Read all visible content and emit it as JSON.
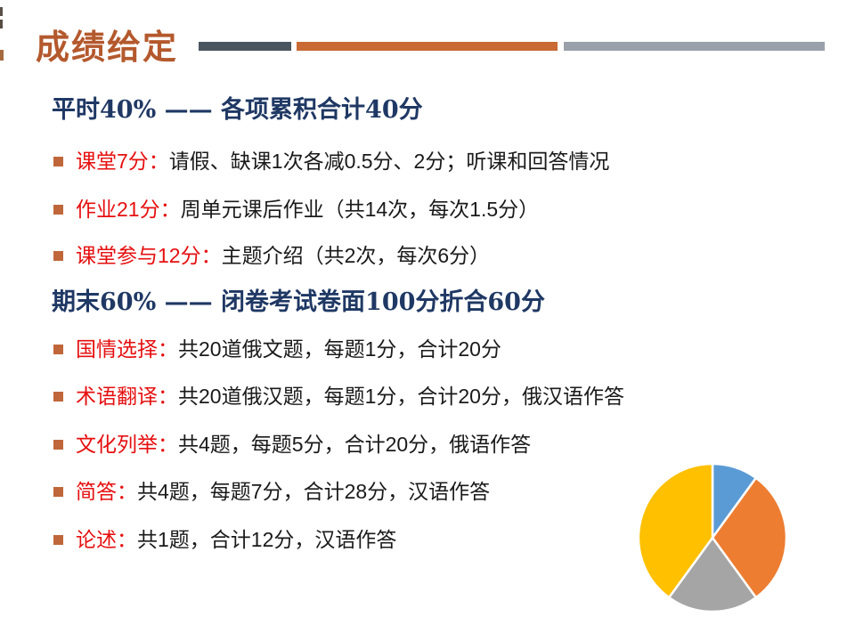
{
  "slide": {
    "title": "成绩给定",
    "sections": [
      {
        "heading": "平时40% —— 各项累积合计40分",
        "bullets": [
          {
            "keyword": "课堂7分：",
            "text": "请假、缺课1次各减0.5分、2分；听课和回答情况"
          },
          {
            "keyword": "作业21分：",
            "text": "周单元课后作业（共14次，每次1.5分）"
          },
          {
            "keyword": "课堂参与12分：",
            "text": "主题介绍（共2次，每次6分）"
          }
        ]
      },
      {
        "heading": "期末60% —— 闭卷考试卷面100分折合60分",
        "bullets": [
          {
            "keyword": "国情选择：",
            "text": "共20道俄文题，每题1分，合计20分"
          },
          {
            "keyword": "术语翻译：",
            "text": "共20道俄汉题，每题1分，合计20分，俄汉语作答"
          },
          {
            "keyword": "文化列举：",
            "text": "共4题，每题5分，合计20分，俄语作答"
          },
          {
            "keyword": "简答：",
            "text": "共4题，每题7分，合计28分，汉语作答"
          },
          {
            "keyword": "论述：",
            "text": "共1题，合计12分，汉语作答"
          }
        ]
      }
    ],
    "colors": {
      "title": "#b4592d",
      "heading": "#1f3864",
      "keyword": "#e60f0f",
      "bullet_marker": "#c0663b",
      "bar_dark": "#4a5560",
      "bar_orange": "#c96a35",
      "bar_gray": "#9aa1ab"
    }
  },
  "chart_data": {
    "type": "pie",
    "title": "",
    "values": [
      10,
      30,
      20,
      40
    ],
    "colors": [
      "#5b9bd5",
      "#ed7d31",
      "#a5a5a5",
      "#ffc000"
    ],
    "start_angle_deg": 0,
    "direction": "clockwise",
    "legend": "none"
  }
}
